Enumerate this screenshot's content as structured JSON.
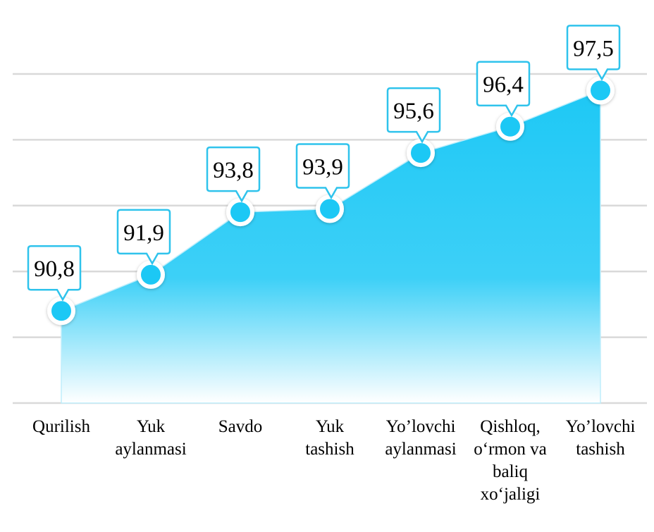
{
  "chart_data": {
    "type": "area",
    "title": "",
    "xlabel": "",
    "ylabel": "",
    "categories": [
      "Qurilish",
      "Yuk\naylanmasi",
      "Savdo",
      "Yuk\ntashish",
      "Yo’lovchi\naylanmasi",
      "Qishloq,\no‘rmon va\nbaliq\nxo‘jaligi",
      "Yo’lovchi\ntashish"
    ],
    "values": [
      90.8,
      91.9,
      93.8,
      93.9,
      95.6,
      96.4,
      97.5
    ],
    "value_labels": [
      "90,8",
      "91,9",
      "93,8",
      "93,9",
      "95,6",
      "96,4",
      "97,5"
    ],
    "ylim": [
      88,
      98
    ],
    "grid": true,
    "legend": "none",
    "colors": {
      "fill_top": "#1ec8f5",
      "fill_bottom": "#ffffff",
      "marker": "#1ec8f5",
      "callout_border": "#2fc3ec",
      "grid": "#d9d9d9"
    }
  }
}
